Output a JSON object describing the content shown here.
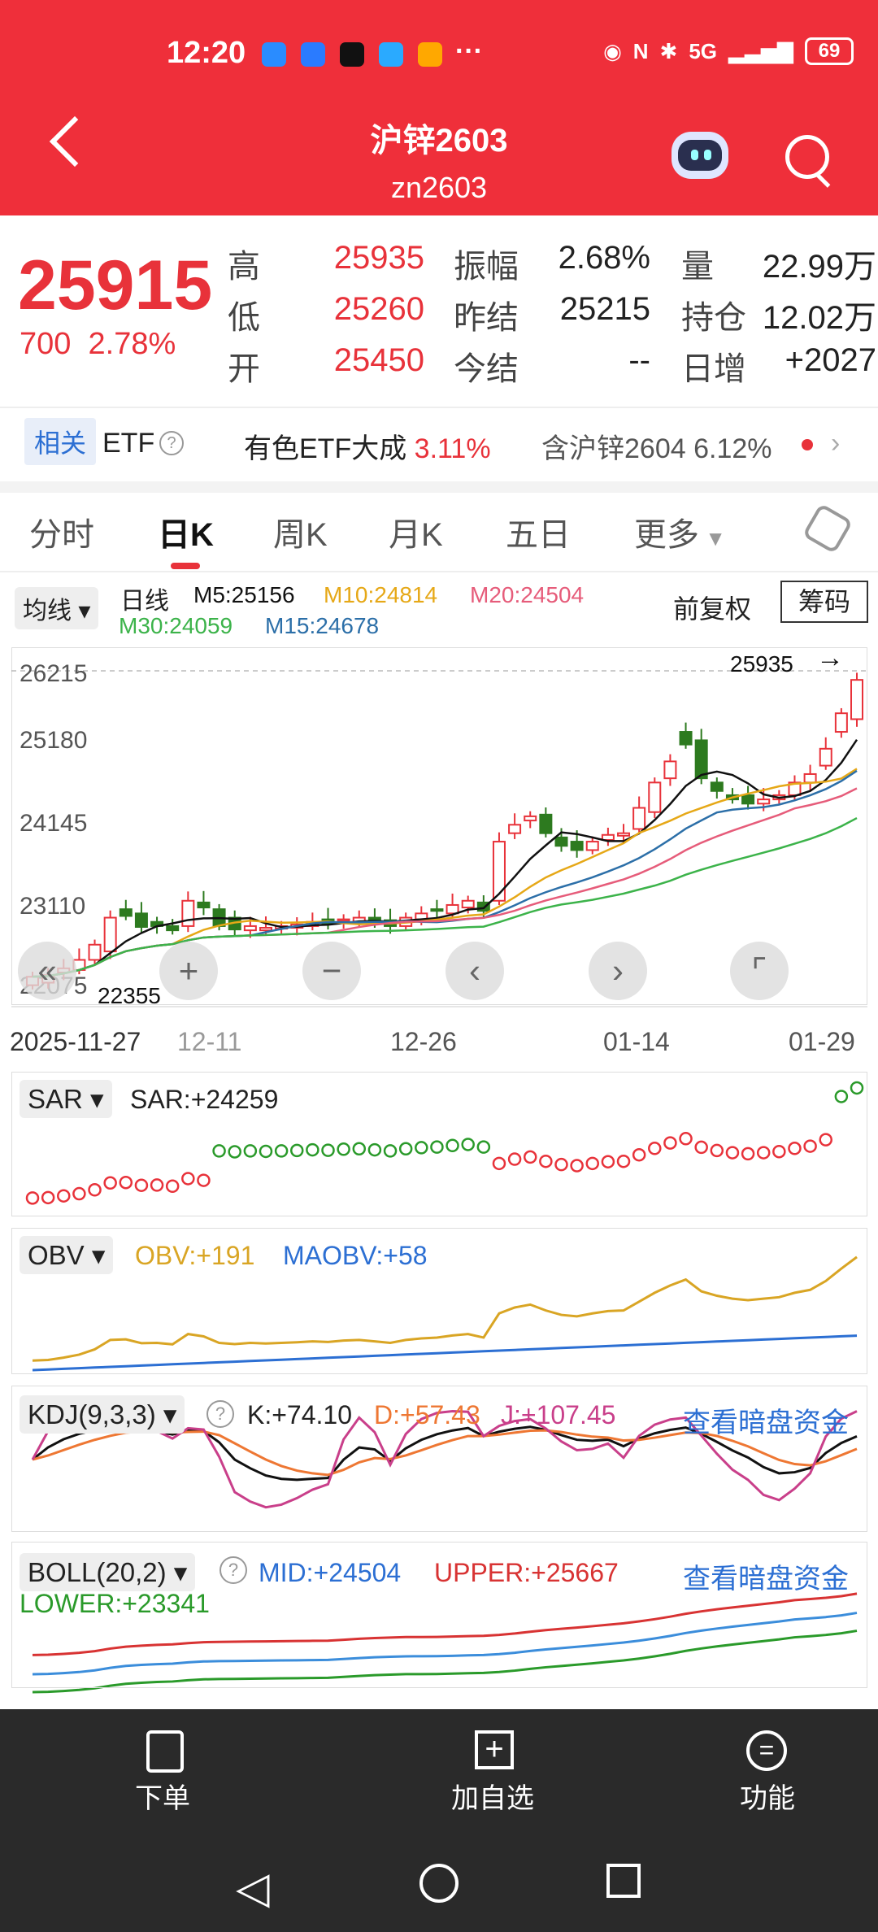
{
  "status": {
    "time": "12:20",
    "battery": "69",
    "net": "5G"
  },
  "header": {
    "title": "沪锌2603",
    "code": "zn2603"
  },
  "quote": {
    "price": "25915",
    "change": "700",
    "pct": "2.78%",
    "rows": [
      {
        "l1": "高",
        "v1": "25935",
        "l2": "振幅",
        "v2": "2.68%",
        "l3": "量",
        "v3": "22.99万"
      },
      {
        "l1": "低",
        "v1": "25260",
        "l2": "昨结",
        "v2": "25215",
        "l3": "持仓",
        "v3": "12.02万"
      },
      {
        "l1": "开",
        "v1": "25450",
        "l2": "今结",
        "v2": "--",
        "l3": "日增",
        "v3": "+2027"
      }
    ]
  },
  "related": {
    "tag": "相关",
    "etf": "ETF",
    "f1": "有色ETF大成",
    "f1v": "3.11%",
    "f2": "含沪锌2604",
    "f2v": "6.12%"
  },
  "tabs": [
    "分时",
    "日K",
    "周K",
    "月K",
    "五日",
    "更多"
  ],
  "legend": {
    "select": "均线",
    "type": "日线",
    "m5": "M5:25156",
    "m10": "M10:24814",
    "m20": "M20:24504",
    "m30": "M30:24059",
    "m15": "M15:24678",
    "adj": "前复权",
    "chip": "筹码"
  },
  "axis": {
    "y": [
      "26215",
      "25180",
      "24145",
      "23110",
      "22075"
    ],
    "x": [
      "2025-11-27",
      "12-11",
      "12-26",
      "01-14",
      "01-29"
    ],
    "high": "25935",
    "low": "22355"
  },
  "sar": {
    "name": "SAR",
    "val": "SAR:+24259"
  },
  "obv": {
    "name": "OBV",
    "v1": "OBV:+191",
    "v2": "MAOBV:+58"
  },
  "kdj": {
    "name": "KDJ(9,3,3)",
    "k": "K:+74.10",
    "d": "D:+57.43",
    "j": "J:+107.45",
    "link": "查看暗盘资金"
  },
  "boll": {
    "name": "BOLL(20,2)",
    "mid": "MID:+24504",
    "up": "UPPER:+25667",
    "low": "LOWER:+23341",
    "link": "查看暗盘资金"
  },
  "bottom": {
    "b1": "下单",
    "b2": "加自选",
    "b3": "功能"
  },
  "chart_data": {
    "type": "candlestick",
    "ylim": [
      22075,
      26215
    ],
    "close": [
      22400,
      22420,
      22500,
      22600,
      22780,
      23100,
      23120,
      22990,
      23000,
      22950,
      23300,
      23220,
      23000,
      22960,
      23000,
      22980,
      23000,
      23020,
      23050,
      23030,
      23080,
      23100,
      23050,
      23000,
      23100,
      23150,
      23180,
      23250,
      23300,
      23180,
      24000,
      24200,
      24300,
      24100,
      23950,
      23900,
      24000,
      24080,
      24100,
      24400,
      24700,
      24950,
      25150,
      24750,
      24600,
      24500,
      24450,
      24500,
      24550,
      24700,
      24800,
      25100,
      25520,
      25915
    ],
    "open": [
      22300,
      22330,
      22450,
      22480,
      22600,
      22700,
      23200,
      23150,
      23050,
      23000,
      23000,
      23280,
      23200,
      23100,
      22950,
      22950,
      22970,
      22980,
      23000,
      23080,
      23060,
      23050,
      23100,
      23070,
      23000,
      23080,
      23200,
      23150,
      23220,
      23280,
      23300,
      24100,
      24250,
      24320,
      24050,
      24000,
      23900,
      24020,
      24070,
      24150,
      24350,
      24750,
      25300,
      25200,
      24700,
      24550,
      24550,
      24450,
      24500,
      24550,
      24700,
      24900,
      25300,
      25450
    ]
  }
}
